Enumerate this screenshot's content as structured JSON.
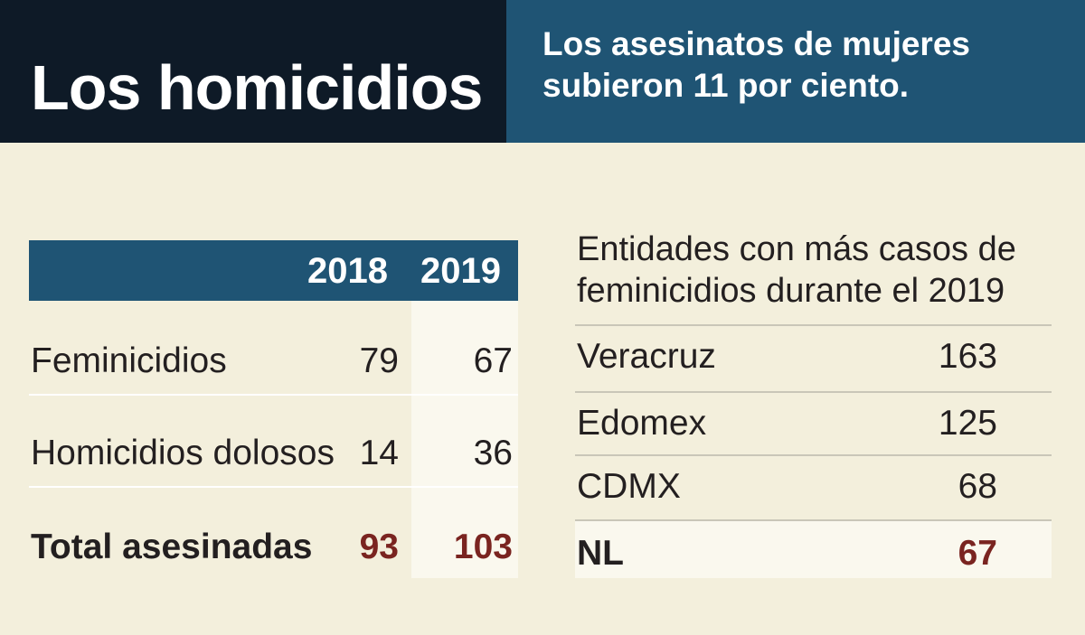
{
  "header": {
    "title": "Los homicidios",
    "subtitle": "Los asesinatos de mujeres subieron 11 por ciento."
  },
  "chart_data": [
    {
      "type": "table",
      "columns": [
        "",
        "2018",
        "2019"
      ],
      "rows": [
        {
          "label": "Feminicidios",
          "values": [
            79,
            67
          ]
        },
        {
          "label": "Homicidios dolosos",
          "values": [
            14,
            36
          ]
        },
        {
          "label": "Total asesinadas",
          "values": [
            93,
            103
          ]
        }
      ]
    },
    {
      "type": "table",
      "title": "Entidades con más casos de feminicidios durante el 2019",
      "rows": [
        {
          "label": "Veracruz",
          "value": 163
        },
        {
          "label": "Edomex",
          "value": 125
        },
        {
          "label": "CDMX",
          "value": 68
        },
        {
          "label": "NL",
          "value": 67
        }
      ]
    }
  ]
}
